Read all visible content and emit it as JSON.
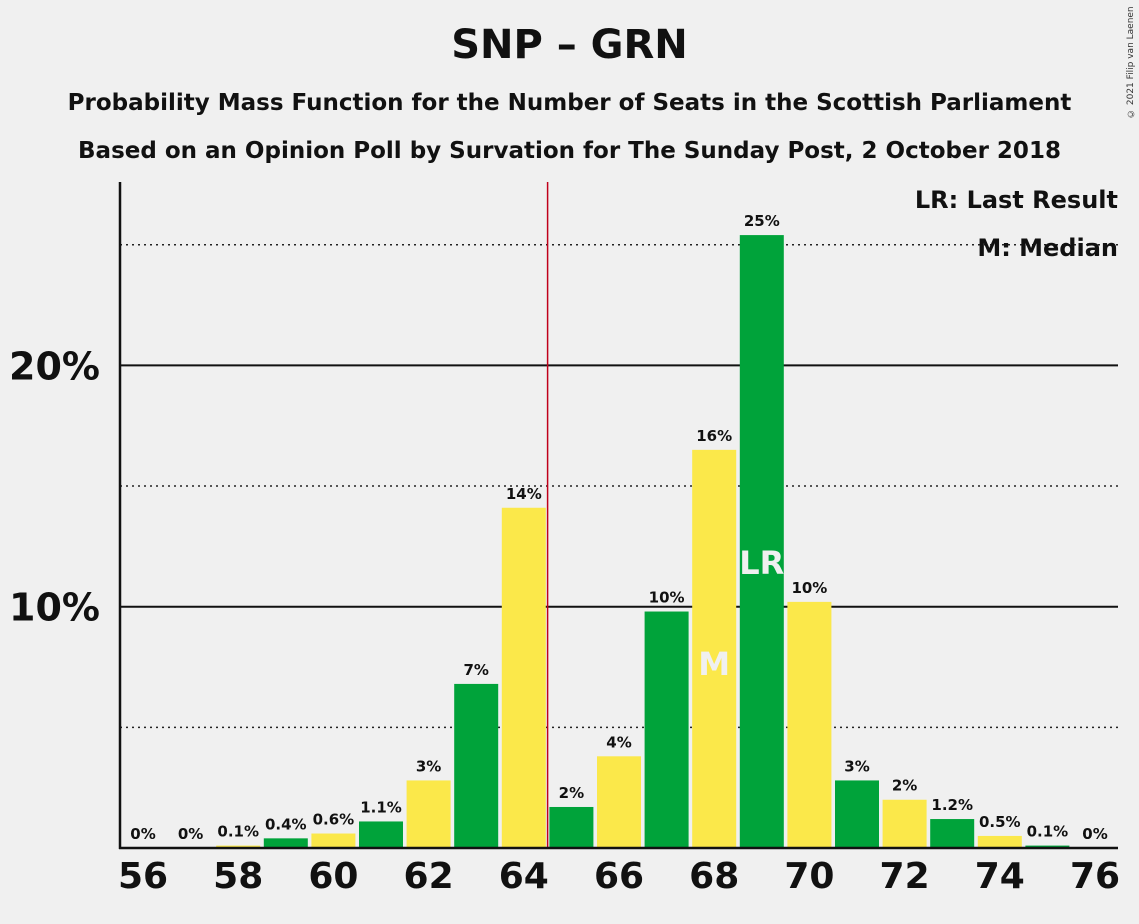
{
  "chart_data": {
    "type": "bar",
    "title": "SNP – GRN",
    "subtitle_1": "Probability Mass Function for the Number of Seats in the Scottish Parliament",
    "subtitle_2": "Based on an Opinion Poll by Survation for The Sunday Post, 2 October 2018",
    "x": [
      56,
      57,
      58,
      59,
      60,
      61,
      62,
      63,
      64,
      65,
      66,
      67,
      68,
      69,
      70,
      71,
      72,
      73,
      74,
      75,
      76
    ],
    "x_tick_labels": [
      "56",
      "58",
      "60",
      "62",
      "64",
      "66",
      "68",
      "70",
      "72",
      "74",
      "76"
    ],
    "values": [
      0,
      0,
      0.1,
      0.4,
      0.6,
      1.1,
      2.8,
      6.8,
      14.1,
      1.7,
      3.8,
      9.8,
      16.5,
      25.4,
      10.2,
      2.8,
      2.0,
      1.2,
      0.5,
      0.1,
      0
    ],
    "value_labels": [
      "0%",
      "0%",
      "0.1%",
      "0.4%",
      "0.6%",
      "1.1%",
      "3%",
      "7%",
      "14%",
      "2%",
      "4%",
      "10%",
      "16%",
      "25%",
      "10%",
      "3%",
      "2%",
      "1.2%",
      "0.5%",
      "0.1%",
      "0%"
    ],
    "ylim": [
      0,
      27.6
    ],
    "y_tick_labels": [
      {
        "value": 10,
        "label": "10%"
      },
      {
        "value": 20,
        "label": "20%"
      }
    ],
    "minor_gridlines": [
      5,
      15,
      25
    ],
    "majority_line_after": 64,
    "last_result": 69,
    "median": 68,
    "last_result_marker": "LR",
    "median_marker": "M",
    "legend_lr": "LR: Last Result",
    "legend_median": "M: Median",
    "colors": {
      "green": "#00a33a",
      "yellow": "#fbe84a",
      "majority": "#c0001a",
      "background": "#f0f0f0"
    }
  },
  "copyright": "© 2021 Filip van Laenen"
}
